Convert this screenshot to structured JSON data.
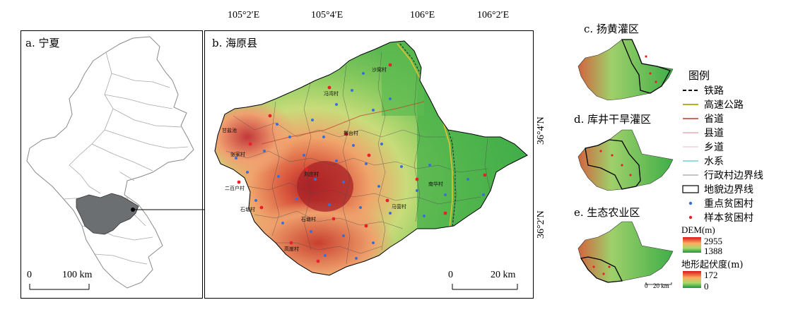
{
  "panel_a": {
    "label": "a. 宁夏",
    "scale_0": "0",
    "scale_text": "100 km"
  },
  "panel_b": {
    "label": "b. 海原县",
    "scale_0": "0",
    "scale_text": "20 km",
    "top_coords": [
      "105°2′E",
      "105°4′E",
      "106°E",
      "106°2′E"
    ],
    "right_coords": [
      "36°4′N",
      "36°2′N"
    ],
    "village_labels": [
      "冯湾村",
      "甘盐池",
      "张家村",
      "二百户村",
      "石塘村",
      "石塘村",
      "撒台村",
      "刘庄村",
      "沙窝村",
      "高崖村",
      "南华村",
      "马营村"
    ]
  },
  "panel_c": {
    "label": "c. 扬黄灌区"
  },
  "panel_d": {
    "label": "d. 库井干旱灌区"
  },
  "panel_e": {
    "label": "e. 生态农业区",
    "scale_0": "0",
    "scale_text": "20 km"
  },
  "legend": {
    "title": "图例",
    "items": [
      {
        "label": "铁路",
        "symbol": "dashed-black"
      },
      {
        "label": "高速公路",
        "symbol": "olive-line"
      },
      {
        "label": "省道",
        "symbol": "red-line"
      },
      {
        "label": "县道",
        "symbol": "pink-line"
      },
      {
        "label": "乡道",
        "symbol": "lightpink-line"
      },
      {
        "label": "水系",
        "symbol": "cyan-line"
      },
      {
        "label": "行政村边界线",
        "symbol": "gray-line"
      },
      {
        "label": "地貌边界线",
        "symbol": "black-box"
      },
      {
        "label": "重点贫困村",
        "symbol": "blue-dot"
      },
      {
        "label": "样本贫困村",
        "symbol": "red-dot"
      }
    ],
    "dem_title": "DEM(m)",
    "dem_high": "2955",
    "dem_low": "1388",
    "relief_title": "地形起伏度(m)",
    "relief_high": "172",
    "relief_low": "0"
  },
  "colors": {
    "dem_high": "#d7191c",
    "dem_mid": "#fdae61",
    "dem_low": "#1a9641",
    "river": "#4fc3d8",
    "key_village": "#3a6fd8",
    "sample_village": "#e8202a"
  }
}
